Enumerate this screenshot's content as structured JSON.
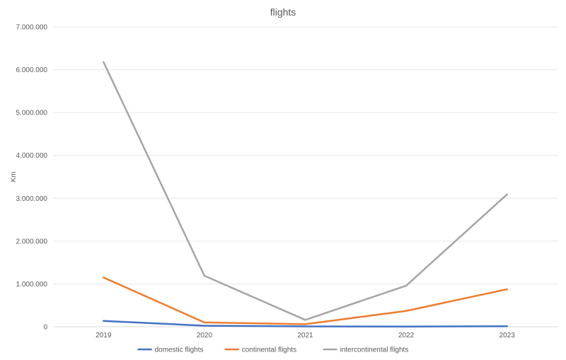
{
  "chart_data": {
    "type": "line",
    "title": "flights",
    "xlabel": "",
    "ylabel": "Km",
    "categories": [
      "2019",
      "2020",
      "2021",
      "2022",
      "2023"
    ],
    "y_ticks": [
      "0",
      "1.000.000",
      "2.000.000",
      "3.000.000",
      "4.000.000",
      "5.000.000",
      "6.000.000",
      "7.000.000"
    ],
    "ylim": [
      0,
      7000000
    ],
    "grid": true,
    "legend_position": "bottom",
    "series": [
      {
        "name": "domestic flights",
        "color": "#4472C4",
        "values": [
          135000,
          25000,
          8000,
          5000,
          12000
        ]
      },
      {
        "name": "continental flights",
        "color": "#ED7D31",
        "values": [
          1150000,
          100000,
          60000,
          370000,
          875000
        ]
      },
      {
        "name": "intercontinental flights",
        "color": "#A5A5A5",
        "values": [
          6180000,
          1190000,
          160000,
          960000,
          3090000
        ]
      }
    ]
  }
}
